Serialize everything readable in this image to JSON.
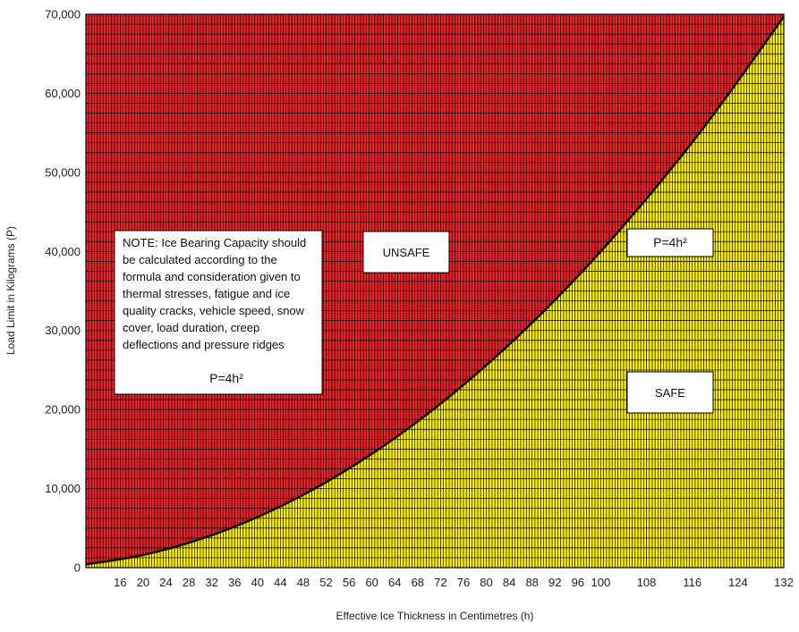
{
  "chart_data": {
    "type": "area",
    "xlabel": "Effective Ice Thickness in Centimetres (h)",
    "ylabel": "Load Limit in Kilograms (P)",
    "xlim": [
      10,
      132
    ],
    "ylim": [
      0,
      70000
    ],
    "x_ticks": [
      "16",
      "20",
      "24",
      "28",
      "32",
      "36",
      "40",
      "44",
      "48",
      "52",
      "56",
      "60",
      "64",
      "68",
      "72",
      "76",
      "80",
      "84",
      "88",
      "92",
      "96",
      "100",
      "108",
      "116",
      "124",
      "132"
    ],
    "y_ticks": [
      "0",
      "10,000",
      "20,000",
      "30,000",
      "40,000",
      "50,000",
      "60,000",
      "70,000"
    ],
    "curve": {
      "formula": "P=4h²",
      "x": [
        10,
        20,
        30,
        40,
        50,
        60,
        70,
        80,
        90,
        100,
        110,
        120,
        132
      ],
      "y": [
        400,
        1600,
        3600,
        6400,
        10000,
        14400,
        19600,
        25600,
        32400,
        40000,
        48400,
        57600,
        69696
      ]
    },
    "grid": true,
    "regions": [
      {
        "name": "UNSAFE",
        "position": "above curve",
        "color": "#ee2229"
      },
      {
        "name": "SAFE",
        "position": "below curve",
        "color": "#fff200"
      }
    ],
    "annotations": {
      "note_lines": [
        "NOTE: Ice Bearing Capacity should",
        "be calculated according to the",
        "formula and consideration given to",
        "thermal stresses, fatigue and ice",
        "quality cracks, vehicle speed, snow",
        "cover, load duration, creep",
        "deflections and pressure ridges"
      ],
      "note_formula": "P=4h²",
      "unsafe_label": "UNSAFE",
      "safe_label": "SAFE",
      "curve_formula_label": "P=4h²"
    }
  }
}
